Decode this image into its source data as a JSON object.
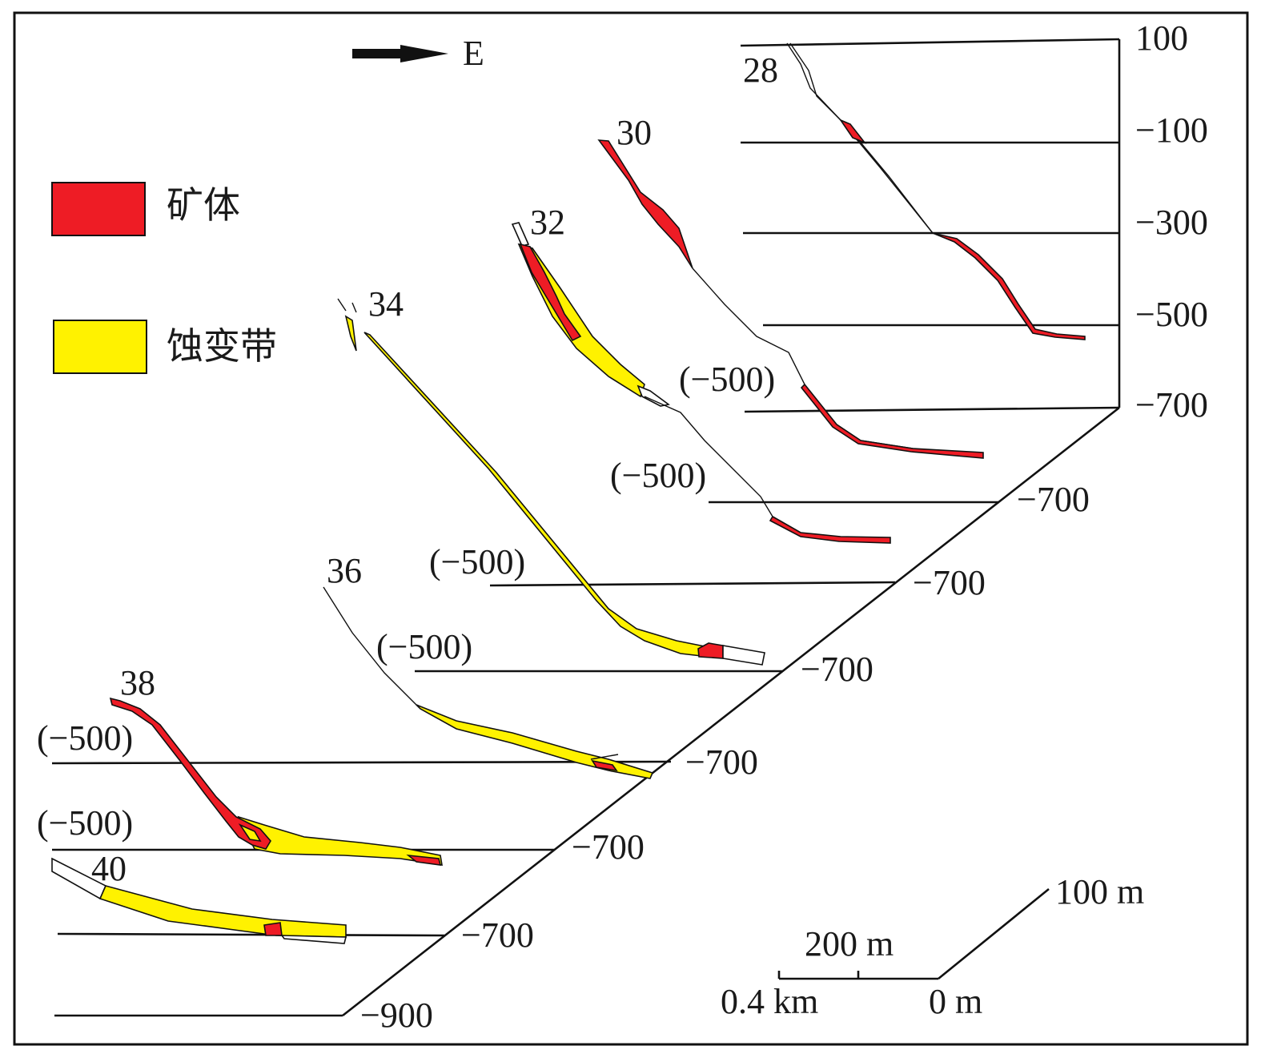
{
  "orientation": {
    "arrow_label": "E"
  },
  "legend": [
    {
      "label": "矿体",
      "color": "#ee1c25"
    },
    {
      "label": "蚀变带",
      "color": "#fff200"
    }
  ],
  "right_axis": {
    "labels": [
      "100",
      "−100",
      "−300",
      "−500",
      "−700"
    ]
  },
  "sections": [
    "28",
    "30",
    "32",
    "34",
    "36",
    "38",
    "40"
  ],
  "section_levels": {
    "s30": {
      "upper": "(−500)",
      "lower": "−700"
    },
    "s32": {
      "upper": "(−500)",
      "lower": "−700"
    },
    "s34": {
      "upper": "(−500)",
      "lower": "−700"
    },
    "s36": {
      "upper": "(−500)",
      "lower": "−700"
    },
    "s38": {
      "upper": "(−500)",
      "lower": "−700"
    },
    "s40": {
      "upper": "(−500)",
      "lower": "−700"
    },
    "base": "−900"
  },
  "scale": {
    "vertical": "100 m",
    "horizontal_mid": "200 m",
    "left": "0.4 km",
    "origin": "0 m"
  }
}
